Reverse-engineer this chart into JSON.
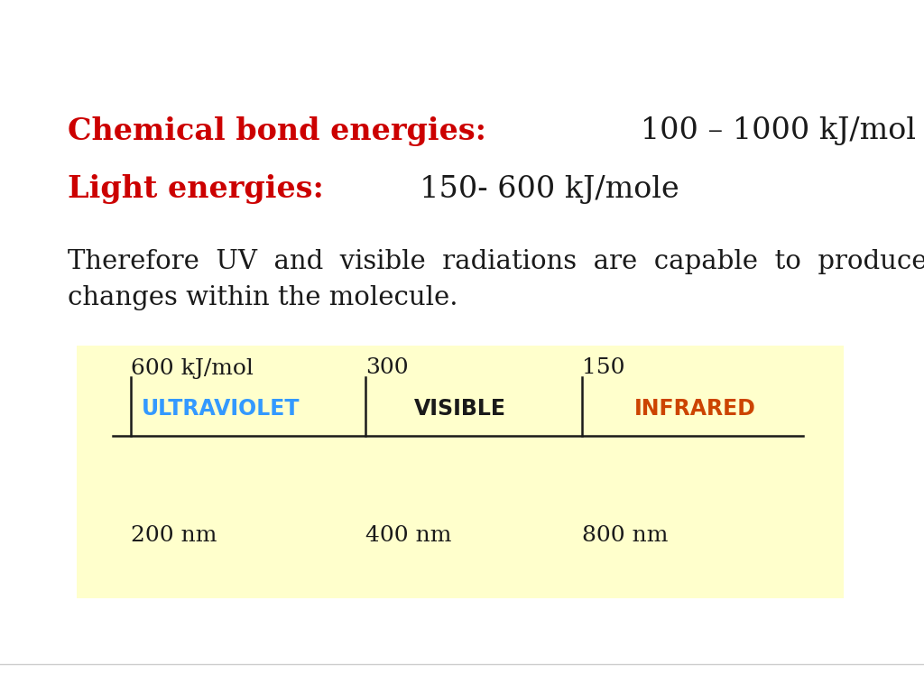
{
  "bg_color": "#ffffff",
  "line1_red": "Chemical bond energies:",
  "line1_black": "   100 – 1000 kJ/mol",
  "line2_red": "Light energies:",
  "line2_black": "  150- 600 kJ/mole",
  "red_color": "#cc0000",
  "blue_color": "#3399ff",
  "orange_color": "#cc4400",
  "black_color": "#1a1a1a",
  "box_bg": "#ffffcc",
  "kj_labels": [
    "600 kJ/mol",
    "300",
    "150"
  ],
  "region_labels": [
    "ULTRAVIOLET",
    "VISIBLE",
    "INFRARED"
  ],
  "region_colors": [
    "#3399ff",
    "#1a1a1a",
    "#cc4400"
  ],
  "nm_labels": [
    "200 nm",
    "400 nm",
    "800 nm"
  ],
  "font_size_heading": 24,
  "font_size_body": 21,
  "font_size_diagram": 18,
  "bottom_line_color": "#cccccc"
}
